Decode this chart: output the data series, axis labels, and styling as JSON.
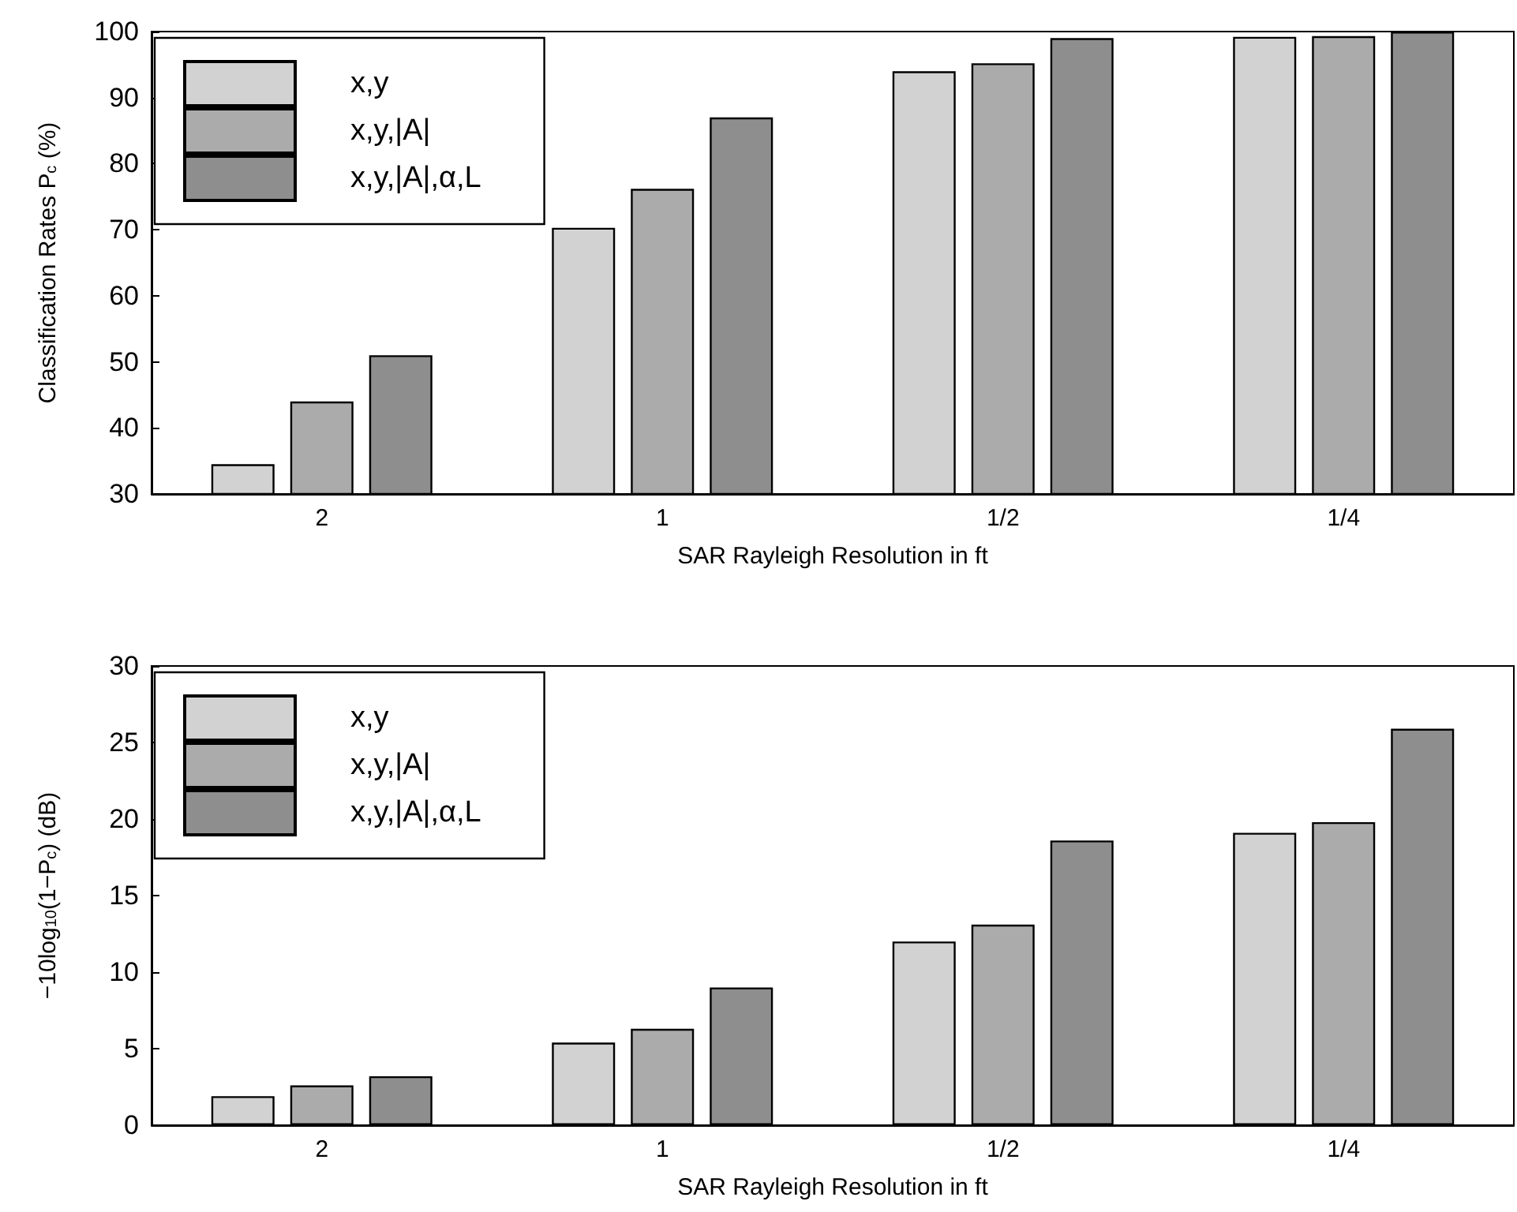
{
  "chart_data": [
    {
      "type": "bar",
      "categories": [
        "2",
        "1",
        "1/2",
        "1/4"
      ],
      "xlabel": "SAR Rayleigh Resolution in ft",
      "ylabel": "Classification Rates P$_{c}$ (%)",
      "ylim": [
        30,
        100
      ],
      "yticks": [
        30,
        40,
        50,
        60,
        70,
        80,
        90,
        100
      ],
      "legend": "top left",
      "series": [
        {
          "name": "x,y",
          "color": "#d2d2d2",
          "values": [
            34.5,
            70.3,
            94.0,
            99.2
          ]
        },
        {
          "name": "x,y,|A|",
          "color": "#ababab",
          "values": [
            44,
            76.2,
            95.2,
            99.3
          ]
        },
        {
          "name": "x,y,|A|,α,L",
          "color": "#8e8e8e",
          "values": [
            51,
            87,
            99,
            100
          ]
        }
      ]
    },
    {
      "type": "bar",
      "categories": [
        "2",
        "1",
        "1/2",
        "1/4"
      ],
      "xlabel": "SAR Rayleigh Resolution in ft",
      "ylabel": "−10log$_{10}$(1−P$_{c}$) (dB)",
      "ylim": [
        0,
        30
      ],
      "yticks": [
        0,
        5,
        10,
        15,
        20,
        25,
        30
      ],
      "legend": "top left",
      "series": [
        {
          "name": "x,y",
          "color": "#d2d2d2",
          "values": [
            1.9,
            5.4,
            12.0,
            19.1
          ]
        },
        {
          "name": "x,y,|A|",
          "color": "#ababab",
          "values": [
            2.6,
            6.3,
            13.1,
            19.8
          ]
        },
        {
          "name": "x,y,|A|,α,L",
          "color": "#8e8e8e",
          "values": [
            3.2,
            9.0,
            18.6,
            25.9
          ]
        }
      ]
    }
  ]
}
